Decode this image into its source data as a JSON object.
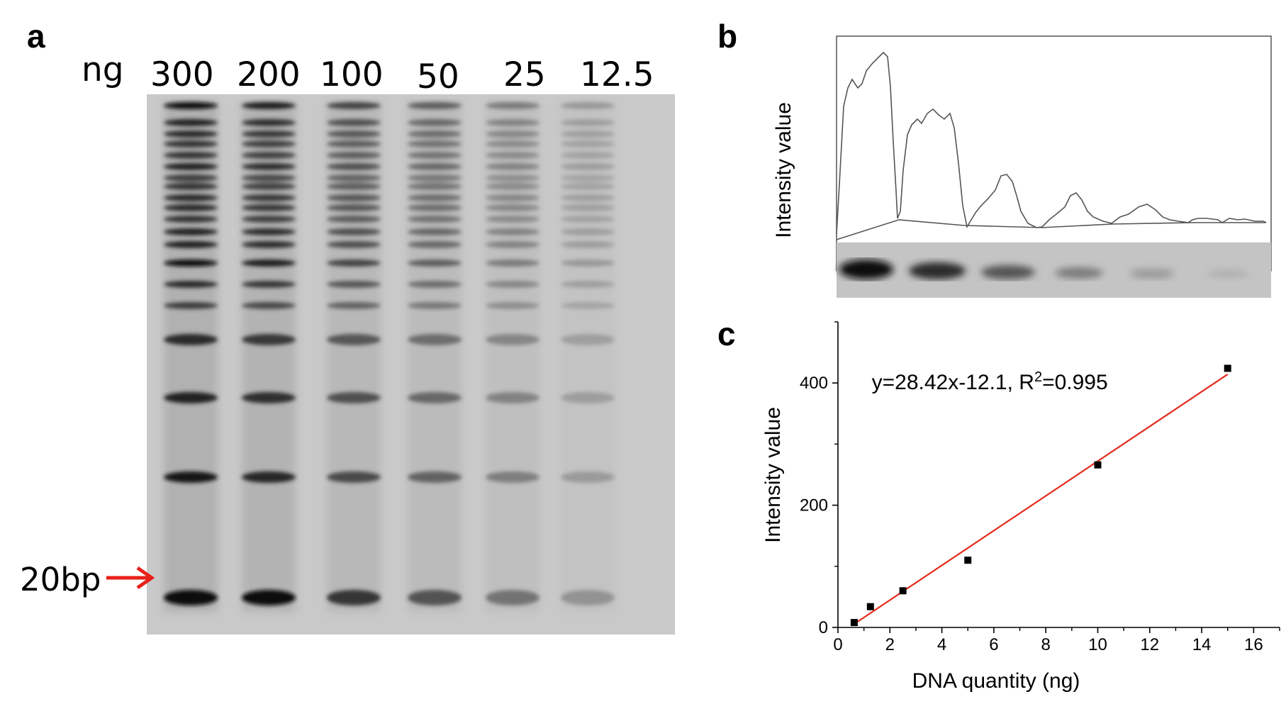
{
  "panels": {
    "a": {
      "letter": "a"
    },
    "b": {
      "letter": "b"
    },
    "c": {
      "letter": "c"
    }
  },
  "gel": {
    "unit_label": "ng",
    "lanes": [
      "300",
      "200",
      "100",
      "50",
      "25",
      "12.5"
    ],
    "marker_label": "20bp",
    "marker_color": "#e8201a"
  },
  "profile": {
    "ylabel": "Intensity value"
  },
  "chart_data": [
    {
      "type": "scatter",
      "xlabel": "DNA quantity (ng)",
      "ylabel": "Intensity value",
      "xlim": [
        0,
        17
      ],
      "ylim": [
        0,
        500
      ],
      "xticks": [
        "0",
        "2",
        "4",
        "6",
        "8",
        "10",
        "12",
        "14",
        "16"
      ],
      "yticks": [
        "0",
        "200",
        "400"
      ],
      "x": [
        0.625,
        1.25,
        2.5,
        5,
        10,
        15
      ],
      "y": [
        8,
        34,
        60,
        110,
        266,
        424
      ],
      "fit": {
        "slope": 28.42,
        "intercept": -12.1,
        "x_range": [
          0.625,
          15
        ],
        "color": "#e32b1c"
      },
      "annotation": "y=28.42x-12.1, R²=0.995",
      "grid": false
    }
  ]
}
